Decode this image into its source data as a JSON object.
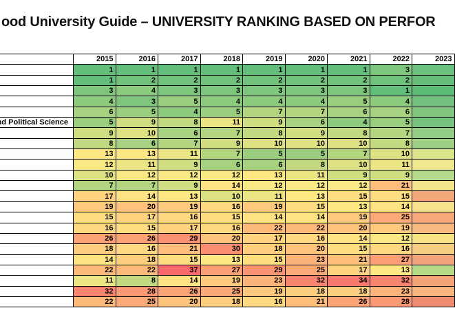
{
  "title": "ood University Guide – UNIVERSITY RANKING BASED ON PERFOR",
  "chart_data": {
    "type": "heatmap",
    "title": "ood University Guide – UNIVERSITY RANKING BASED ON PERFOR",
    "columns": [
      "2015",
      "2016",
      "2017",
      "2018",
      "2019",
      "2020",
      "2021",
      "2022"
    ],
    "partial_column": "2023",
    "name_column_header": "",
    "rows": [
      {
        "label": "",
        "values": [
          1,
          1,
          1,
          1,
          1,
          1,
          1,
          3
        ],
        "partial_color": "#6CC07D"
      },
      {
        "label": "",
        "values": [
          1,
          2,
          2,
          2,
          2,
          2,
          2,
          2
        ],
        "partial_color": "#66BE7A"
      },
      {
        "label": "",
        "values": [
          3,
          4,
          3,
          3,
          3,
          3,
          3,
          1
        ],
        "partial_color": "#5CBB76"
      },
      {
        "label": "",
        "values": [
          4,
          3,
          5,
          4,
          4,
          4,
          5,
          4
        ],
        "partial_color": "#73C17F"
      },
      {
        "label": "",
        "values": [
          6,
          5,
          4,
          5,
          7,
          7,
          6,
          6
        ],
        "partial_color": "#80C580"
      },
      {
        "label": "and Political Science",
        "values": [
          5,
          9,
          8,
          11,
          9,
          6,
          4,
          5
        ],
        "partial_color": "#76C27F"
      },
      {
        "label": "",
        "values": [
          9,
          10,
          6,
          7,
          8,
          9,
          8,
          7
        ],
        "partial_color": "#92CC85"
      },
      {
        "label": "",
        "values": [
          8,
          6,
          7,
          9,
          10,
          10,
          10,
          8
        ],
        "partial_color": "#A0D086"
      },
      {
        "label": "",
        "values": [
          13,
          13,
          11,
          7,
          5,
          5,
          7,
          10
        ],
        "partial_color": "#DDE48D"
      },
      {
        "label": "",
        "values": [
          12,
          11,
          9,
          6,
          6,
          8,
          10,
          11
        ],
        "partial_color": "#EFE88F"
      },
      {
        "label": "",
        "values": [
          10,
          12,
          12,
          12,
          13,
          11,
          9,
          9
        ],
        "partial_color": "#B5DA89"
      },
      {
        "label": "",
        "values": [
          7,
          7,
          9,
          14,
          12,
          12,
          12,
          21
        ],
        "partial_color": "#F5E58A"
      },
      {
        "label": "",
        "values": [
          17,
          14,
          13,
          10,
          11,
          13,
          15,
          15
        ],
        "partial_color": "#F2A77B"
      },
      {
        "label": "",
        "values": [
          19,
          20,
          19,
          16,
          19,
          15,
          13,
          14
        ],
        "partial_color": "#F5E28A"
      },
      {
        "label": "",
        "values": [
          15,
          17,
          16,
          15,
          14,
          14,
          19,
          25
        ],
        "partial_color": "#F5A97B"
      },
      {
        "label": "",
        "values": [
          16,
          15,
          17,
          16,
          22,
          22,
          20,
          19
        ],
        "partial_color": "#F7B97F"
      },
      {
        "label": "",
        "values": [
          26,
          26,
          29,
          20,
          17,
          16,
          14,
          12
        ],
        "partial_color": "#F8E286"
      },
      {
        "label": "",
        "values": [
          18,
          16,
          21,
          30,
          18,
          20,
          15,
          16
        ],
        "partial_color": "#F6CE83"
      },
      {
        "label": "",
        "values": [
          14,
          18,
          15,
          13,
          15,
          23,
          21,
          27
        ],
        "partial_color": "#F2A47A"
      },
      {
        "label": "",
        "values": [
          22,
          22,
          37,
          27,
          29,
          25,
          17,
          13
        ],
        "partial_color": "#B7DA89"
      },
      {
        "label": "",
        "values": [
          11,
          8,
          14,
          19,
          23,
          32,
          34,
          32
        ],
        "partial_color": "#F4A479"
      },
      {
        "label": "",
        "values": [
          32,
          28,
          26,
          25,
          19,
          18,
          18,
          23
        ],
        "partial_color": "#F7B67E"
      },
      {
        "label": "",
        "values": [
          22,
          25,
          20,
          18,
          16,
          21,
          26,
          28
        ],
        "partial_color": "#EE8D71"
      }
    ],
    "colorscale": {
      "min_value": 1,
      "mid_value": 12.5,
      "max_value": 37,
      "min_color": "#63BE7B",
      "mid_color": "#FFEB84",
      "max_color": "#F8696B"
    },
    "layout": {
      "legend": "none",
      "grid": "black-1px",
      "values_align": "right"
    }
  }
}
